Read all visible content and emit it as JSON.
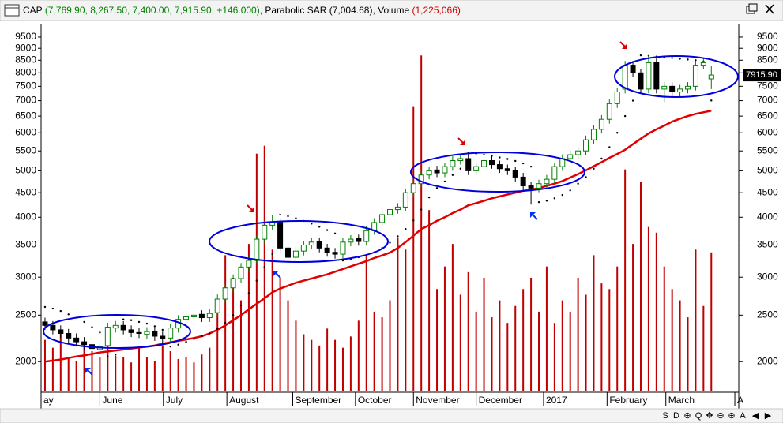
{
  "header": {
    "symbol": "CAP",
    "ohlc": "(7,769.90, 8,267.50, 7,400.00, 7,915.90, +146.000)",
    "indicators": ", Parabolic SAR (7,004.68), Volume ",
    "volume": "(1,225,066)"
  },
  "toolbar": {
    "buttons": [
      "S",
      "D",
      "⊕",
      "Q",
      "✥",
      "⊖",
      "⊕",
      "A"
    ],
    "nav": [
      "◀",
      "▶"
    ]
  },
  "chart_data": {
    "type": "candlestick",
    "log_y": true,
    "xlim": [
      -0.5,
      88.5
    ],
    "xticks": [
      {
        "value": -0.5,
        "label": "ay"
      },
      {
        "value": 7,
        "label": "June"
      },
      {
        "value": 15.1,
        "label": "July"
      },
      {
        "value": 23.2,
        "label": "August"
      },
      {
        "value": 31.6,
        "label": "September"
      },
      {
        "value": 39.6,
        "label": "October"
      },
      {
        "value": 47,
        "label": "November"
      },
      {
        "value": 55,
        "label": "December"
      },
      {
        "value": 63.6,
        "label": "2017"
      },
      {
        "value": 71.7,
        "label": "February"
      },
      {
        "value": 79.2,
        "label": "March"
      },
      {
        "value": 88,
        "label": "A"
      }
    ],
    "ylim": [
      1740,
      10130
    ],
    "yticks": [
      2000,
      2500,
      3000,
      3500,
      4000,
      4500,
      5000,
      5500,
      6000,
      6500,
      7000,
      7500,
      8000,
      8500,
      9000,
      9500
    ],
    "up_color": "#008000",
    "down_color": "#000000",
    "x": [
      0,
      1,
      2,
      3,
      4,
      5,
      6,
      7,
      8,
      9,
      10,
      11,
      12,
      13,
      14,
      15,
      16,
      17,
      18,
      19,
      20,
      21,
      22,
      23,
      24,
      25,
      26,
      27,
      28,
      29,
      30,
      31,
      32,
      33,
      34,
      35,
      36,
      37,
      38,
      39,
      40,
      41,
      42,
      43,
      44,
      45,
      46,
      47,
      48,
      49,
      50,
      51,
      52,
      53,
      54,
      55,
      56,
      57,
      58,
      59,
      60,
      61,
      62,
      63,
      64,
      65,
      66,
      67,
      68,
      69,
      70,
      71,
      72,
      73,
      74,
      75,
      76,
      77,
      78,
      79,
      80,
      81,
      82,
      83,
      84,
      85
    ],
    "open": [
      2420,
      2380,
      2330,
      2290,
      2240,
      2200,
      2170,
      2120,
      2160,
      2350,
      2380,
      2330,
      2300,
      2280,
      2310,
      2260,
      2240,
      2350,
      2450,
      2480,
      2510,
      2470,
      2530,
      2700,
      2850,
      2980,
      3150,
      3250,
      3600,
      3850,
      3900,
      3450,
      3300,
      3400,
      3500,
      3560,
      3450,
      3380,
      3350,
      3550,
      3610,
      3560,
      3750,
      3900,
      4050,
      4150,
      4200,
      4500,
      4700,
      4900,
      5020,
      4950,
      5100,
      5250,
      5300,
      5000,
      5100,
      5250,
      5150,
      5050,
      5000,
      4850,
      4650,
      4600,
      4700,
      4800,
      5100,
      5300,
      5400,
      5500,
      5800,
      6100,
      6400,
      6900,
      7400,
      8300,
      8000,
      7400,
      8400,
      7400,
      7500,
      7300,
      7400,
      7500,
      8300,
      7769.9
    ],
    "high": [
      2470,
      2430,
      2380,
      2340,
      2290,
      2250,
      2210,
      2200,
      2410,
      2430,
      2430,
      2380,
      2350,
      2360,
      2360,
      2310,
      2400,
      2500,
      2530,
      2550,
      2560,
      2570,
      2760,
      2910,
      3040,
      3210,
      3320,
      3670,
      3930,
      4050,
      3980,
      3520,
      3470,
      3570,
      3620,
      3630,
      3520,
      3450,
      3620,
      3670,
      3680,
      3830,
      3980,
      4130,
      4230,
      4280,
      4590,
      4790,
      5000,
      5100,
      5120,
      5200,
      5360,
      5410,
      5410,
      5200,
      5360,
      5360,
      5250,
      5150,
      5100,
      4950,
      4740,
      4790,
      4900,
      5200,
      5410,
      5510,
      5610,
      5920,
      6220,
      6530,
      7040,
      7450,
      8470,
      8470,
      8160,
      8700,
      8570,
      7650,
      7650,
      7550,
      7650,
      8470,
      8570,
      8267.5
    ],
    "low": [
      2330,
      2280,
      2240,
      2190,
      2150,
      2120,
      2080,
      2070,
      2110,
      2300,
      2280,
      2250,
      2240,
      2230,
      2210,
      2180,
      2190,
      2300,
      2400,
      2430,
      2420,
      2420,
      2480,
      2650,
      2790,
      2920,
      3090,
      3190,
      3530,
      3770,
      3380,
      3230,
      3230,
      3330,
      3430,
      3380,
      3310,
      3280,
      3280,
      3480,
      3490,
      3490,
      3680,
      3820,
      3970,
      4070,
      4120,
      4410,
      4610,
      4800,
      4850,
      4850,
      5000,
      5150,
      4900,
      4900,
      5000,
      5050,
      4950,
      4900,
      4750,
      4560,
      4250,
      4510,
      4610,
      4700,
      5000,
      5190,
      5290,
      5390,
      5680,
      5980,
      6270,
      6760,
      7250,
      7840,
      7250,
      7250,
      7250,
      6950,
      7150,
      7150,
      7250,
      7350,
      8130,
      7400
    ],
    "close": [
      2380,
      2330,
      2290,
      2240,
      2200,
      2170,
      2130,
      2150,
      2360,
      2380,
      2330,
      2300,
      2290,
      2310,
      2260,
      2230,
      2350,
      2450,
      2480,
      2500,
      2470,
      2520,
      2700,
      2850,
      2980,
      3150,
      3250,
      3600,
      3850,
      3900,
      3450,
      3300,
      3400,
      3500,
      3550,
      3450,
      3380,
      3350,
      3550,
      3600,
      3560,
      3750,
      3900,
      4050,
      4150,
      4200,
      4500,
      4700,
      4900,
      5000,
      4950,
      5100,
      5250,
      5300,
      5000,
      5100,
      5250,
      5150,
      5050,
      5000,
      4850,
      4650,
      4600,
      4700,
      4800,
      5100,
      5300,
      5400,
      5500,
      5800,
      6100,
      6400,
      6900,
      7300,
      8300,
      8000,
      7400,
      8400,
      7400,
      7500,
      7300,
      7400,
      7500,
      8300,
      8400,
      7915.9
    ],
    "last_label": {
      "value": 7915.9,
      "label": "7915.90"
    },
    "ma": {
      "color": "#e00000",
      "values": [
        2000,
        2010,
        2020,
        2035,
        2050,
        2060,
        2075,
        2090,
        2100,
        2110,
        2120,
        2130,
        2140,
        2150,
        2160,
        2180,
        2195,
        2210,
        2225,
        2240,
        2260,
        2290,
        2330,
        2380,
        2440,
        2500,
        2570,
        2640,
        2710,
        2790,
        2840,
        2880,
        2920,
        2950,
        2980,
        3010,
        3040,
        3080,
        3120,
        3160,
        3200,
        3240,
        3290,
        3330,
        3375,
        3450,
        3550,
        3660,
        3780,
        3850,
        3930,
        4000,
        4080,
        4150,
        4235,
        4280,
        4330,
        4380,
        4420,
        4460,
        4500,
        4540,
        4565,
        4600,
        4650,
        4700,
        4760,
        4840,
        4920,
        5010,
        5110,
        5210,
        5320,
        5420,
        5530,
        5680,
        5830,
        5980,
        6100,
        6210,
        6330,
        6420,
        6500,
        6570,
        6620,
        6670
      ]
    },
    "sar": {
      "color": "#000000",
      "values": [
        2600,
        2580,
        2550,
        2510,
        2470,
        2420,
        2360,
        2300,
        2050,
        2070,
        2450,
        2440,
        2420,
        2400,
        2370,
        2330,
        2150,
        2170,
        2200,
        2230,
        2260,
        2290,
        2340,
        2410,
        2500,
        2620,
        2780,
        2950,
        3150,
        3350,
        4050,
        4020,
        3980,
        3930,
        3880,
        3820,
        3760,
        3700,
        3250,
        3270,
        3300,
        3330,
        3380,
        3450,
        3540,
        3650,
        3780,
        3940,
        4150,
        4400,
        4600,
        4750,
        4900,
        5050,
        5450,
        5430,
        5400,
        5370,
        5330,
        5290,
        5240,
        5180,
        5100,
        4300,
        4330,
        4380,
        4450,
        4550,
        4700,
        4850,
        5050,
        5300,
        5600,
        6000,
        6500,
        7000,
        8700,
        8680,
        8650,
        8620,
        8590,
        8560,
        8530,
        8500,
        8450,
        7004.68
      ]
    },
    "y2lim": [
      0,
      3000000
    ],
    "volume": {
      "color": "#c00000",
      "axis": "y2",
      "values": [
        450000,
        380000,
        520000,
        300000,
        260000,
        420000,
        350000,
        300000,
        480000,
        310000,
        300000,
        250000,
        380000,
        300000,
        260000,
        400000,
        350000,
        280000,
        300000,
        250000,
        320000,
        380000,
        700000,
        1200000,
        1000000,
        800000,
        1300000,
        2100000,
        2170000,
        1250000,
        1000000,
        800000,
        620000,
        500000,
        450000,
        400000,
        550000,
        450000,
        380000,
        480000,
        620000,
        1200000,
        700000,
        650000,
        800000,
        1350000,
        1250000,
        2520000,
        2970000,
        1600000,
        900000,
        1100000,
        1300000,
        850000,
        1050000,
        700000,
        1000000,
        650000,
        800000,
        600000,
        750000,
        900000,
        1000000,
        700000,
        1100000,
        600000,
        800000,
        700000,
        1000000,
        850000,
        1200000,
        950000,
        900000,
        1100000,
        1960000,
        1300000,
        1850000,
        1450000,
        1400000,
        1100000,
        900000,
        800000,
        650000,
        1250000,
        750000,
        1225066
      ]
    }
  }
}
